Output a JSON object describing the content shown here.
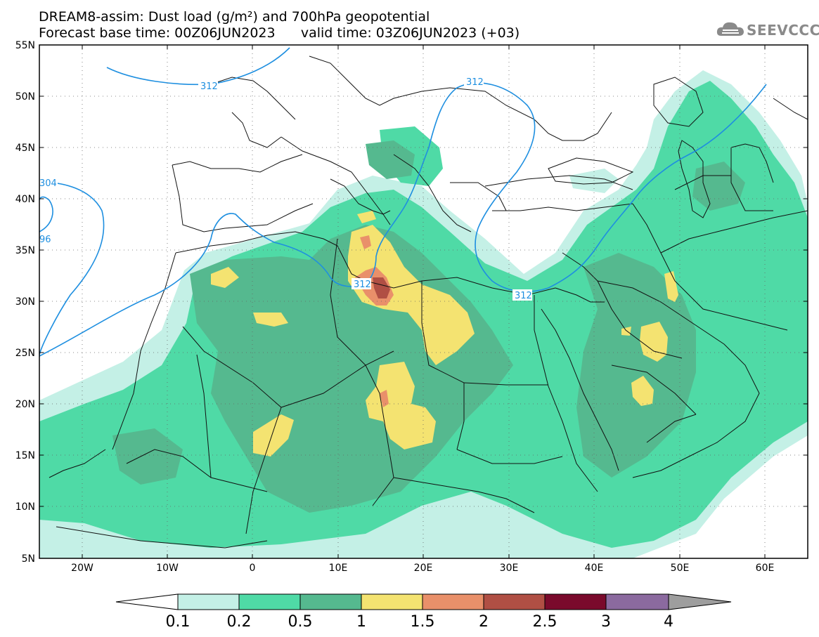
{
  "header": {
    "line1": "DREAM8-assim: Dust load (g/m²) and 700hPa geopotential",
    "line2_left": "Forecast base time: 00Z06JUN2023",
    "line2_right": "valid time: 03Z06JUN2023 (+03)"
  },
  "logo": {
    "text": "SEEVCCC",
    "icon": "cloud-icon"
  },
  "map": {
    "lon_labels": [
      "20W",
      "10W",
      "0",
      "10E",
      "20E",
      "30E",
      "40E",
      "50E",
      "60E"
    ],
    "lat_labels": [
      "55N",
      "50N",
      "45N",
      "40N",
      "35N",
      "30N",
      "25N",
      "20N",
      "15N",
      "10N",
      "5N"
    ],
    "contour_labels": [
      "312",
      "312",
      "312",
      "312",
      "304",
      "96"
    ],
    "colors": {
      "level_0_1": "#c4f0e6",
      "level_0_2": "#4fdaa6",
      "level_0_5": "#55b98f",
      "level_1": "#f4e371",
      "level_1_5": "#e9906a",
      "level_2": "#b04f44",
      "level_2_5": "#7a0a2c",
      "level_3": "#8b6a9f",
      "level_4": "#9e9e9e",
      "contour": "#1e8fe0",
      "coastline": "#111111"
    }
  },
  "colorbar": {
    "labels": [
      "0.1",
      "0.2",
      "0.5",
      "1",
      "1.5",
      "2",
      "2.5",
      "3",
      "4"
    ],
    "colors": [
      "#c4f0e6",
      "#4fdaa6",
      "#55b98f",
      "#f4e371",
      "#e9906a",
      "#b04f44",
      "#7a0a2c",
      "#8b6a9f"
    ]
  }
}
